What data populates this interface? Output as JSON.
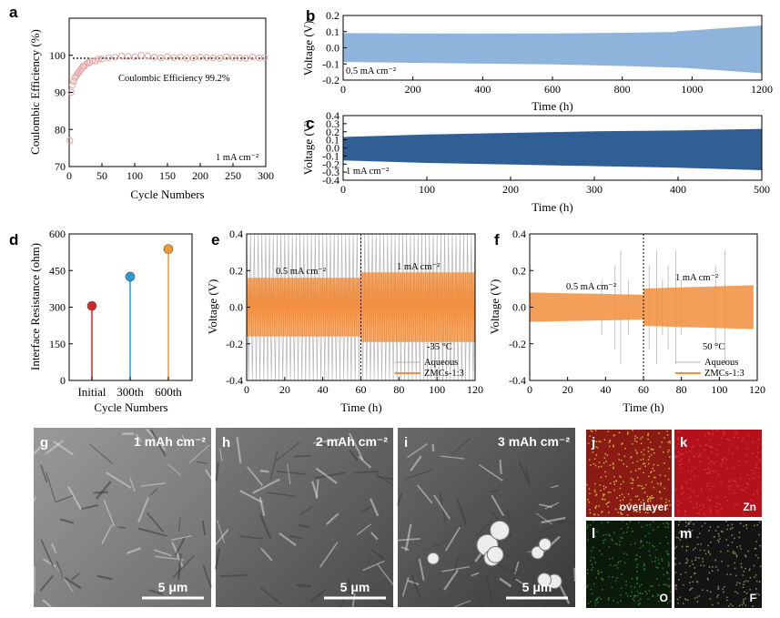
{
  "panels": {
    "a": {
      "label": "a",
      "ylabel": "Coulombic Efficiency (%)",
      "xlabel": "Cycle Numbers",
      "annotation": "Coulombic Efficiency 99.2%",
      "current": "1 mA cm⁻²"
    },
    "b": {
      "label": "b",
      "ylabel": "Voltage (V)",
      "xlabel": "Time (h)",
      "current": "0.5 mA cm⁻²"
    },
    "c": {
      "label": "c",
      "ylabel": "Voltage (V)",
      "xlabel": "Time (h)",
      "current": "1 mA cm⁻²"
    },
    "d": {
      "label": "d",
      "ylabel": "Interface Resistance (ohm)",
      "xlabel": "Cycle Numbers"
    },
    "e": {
      "label": "e",
      "ylabel": "Voltage (V)",
      "xlabel": "Time (h)",
      "current1": "0.5 mA cm⁻²",
      "current2": "1 mA cm⁻²",
      "temp": "-35 °C",
      "legend1": "Aqueous",
      "legend2": "ZMCs-1:3"
    },
    "f": {
      "label": "f",
      "ylabel": "Voltage (V)",
      "xlabel": "Time (h)",
      "current1": "0.5 mA cm⁻²",
      "current2": "1 mA cm⁻²",
      "temp": "50 °C",
      "legend1": "Aqueous",
      "legend2": "ZMCs-1:3"
    },
    "g": {
      "label": "g",
      "capacity": "1 mAh cm⁻²",
      "scale": "5 μm"
    },
    "h": {
      "label": "h",
      "capacity": "2 mAh cm⁻²",
      "scale": "5 μm"
    },
    "i": {
      "label": "i",
      "capacity": "3 mAh cm⁻²",
      "scale": "5 μm"
    },
    "j": {
      "label": "j",
      "element": "overlayer"
    },
    "k": {
      "label": "k",
      "element": "Zn"
    },
    "l": {
      "label": "l",
      "element": "O"
    },
    "m": {
      "label": "m",
      "element": "F"
    }
  },
  "colors": {
    "orange": "#f28e3c",
    "lightblue": "#8fb4dc",
    "darkblue": "#2f5f95",
    "red": "#d62728",
    "cyan": "#2e9ad3",
    "gold": "#f29a2e"
  },
  "chart_data": [
    {
      "type": "scatter",
      "panel": "a",
      "xlim": [
        0,
        300
      ],
      "ylim": [
        70,
        110
      ],
      "xticks": [
        "0",
        "50",
        "100",
        "150",
        "200",
        "250",
        "300"
      ],
      "yticks": [
        "70",
        "80",
        "90",
        "100"
      ],
      "reference_line": 99.2,
      "x": [
        1,
        3,
        5,
        7,
        9,
        11,
        13,
        15,
        17,
        19,
        21,
        23,
        25,
        28,
        31,
        35,
        40,
        45,
        50,
        60,
        70,
        80,
        90,
        100,
        110,
        120,
        130,
        140,
        150,
        160,
        170,
        180,
        190,
        200,
        210,
        220,
        230,
        240,
        250,
        260,
        270,
        280,
        290,
        298
      ],
      "values": [
        77,
        90,
        92,
        93,
        94,
        94.5,
        95,
        95.5,
        96,
        96.5,
        97,
        97,
        97.5,
        98,
        98,
        98.5,
        98.5,
        99,
        99,
        99.3,
        99.5,
        99.8,
        99.7,
        99.6,
        100,
        99.8,
        99.5,
        99.3,
        99.6,
        99.4,
        99.5,
        99.2,
        99.3,
        99.5,
        99.4,
        99.3,
        99.2,
        99.6,
        99.4,
        99.3,
        99.2,
        99.5,
        99.3,
        99.4
      ]
    },
    {
      "type": "area",
      "panel": "b",
      "xlim": [
        0,
        1200
      ],
      "ylim": [
        -0.2,
        0.2
      ],
      "xticks": [
        "0",
        "200",
        "400",
        "600",
        "800",
        "1000",
        "1200"
      ],
      "yticks": [
        "-0.2",
        "-0.1",
        "0.0",
        "0.1",
        "0.2"
      ],
      "time": [
        0,
        200,
        400,
        600,
        800,
        950,
        960,
        1000,
        1200
      ],
      "upper": [
        0.088,
        0.086,
        0.085,
        0.086,
        0.09,
        0.095,
        0.1,
        0.105,
        0.135
      ],
      "lower": [
        -0.085,
        -0.09,
        -0.095,
        -0.1,
        -0.11,
        -0.12,
        -0.12,
        -0.125,
        -0.155
      ]
    },
    {
      "type": "area",
      "panel": "c",
      "xlim": [
        0,
        500
      ],
      "ylim": [
        -0.4,
        0.4
      ],
      "xticks": [
        "0",
        "100",
        "200",
        "300",
        "400",
        "500"
      ],
      "yticks": [
        "-0.4",
        "-0.3",
        "-0.2",
        "-0.1",
        "0.0",
        "0.1",
        "0.2",
        "0.3",
        "0.4"
      ],
      "time": [
        0,
        100,
        200,
        300,
        400,
        500
      ],
      "upper": [
        0.13,
        0.16,
        0.18,
        0.2,
        0.21,
        0.23
      ],
      "lower": [
        -0.15,
        -0.18,
        -0.2,
        -0.22,
        -0.24,
        -0.27
      ]
    },
    {
      "type": "scatter",
      "panel": "d",
      "ylim": [
        0,
        600
      ],
      "categories": [
        "Initial",
        "300th",
        "600th"
      ],
      "yticks": [
        "0",
        "150",
        "300",
        "450",
        "600"
      ],
      "values": [
        305,
        425,
        538
      ]
    },
    {
      "type": "line",
      "panel": "e",
      "xlim": [
        0,
        120
      ],
      "ylim": [
        -0.4,
        0.4
      ],
      "xticks": [
        "0",
        "20",
        "40",
        "60",
        "80",
        "100",
        "120"
      ],
      "yticks": [
        "-0.4",
        "-0.2",
        "0.0",
        "0.2",
        "0.4"
      ],
      "divider": 60,
      "series": [
        {
          "name": "Aqueous",
          "period_h": 2,
          "amplitude": [
            0.4,
            0.4
          ]
        },
        {
          "name": "ZMCs-1:3",
          "period_h": 2,
          "amplitude": [
            0.16,
            0.19
          ]
        }
      ]
    },
    {
      "type": "line",
      "panel": "f",
      "xlim": [
        0,
        120
      ],
      "ylim": [
        -0.4,
        0.4
      ],
      "xticks": [
        "0",
        "20",
        "40",
        "60",
        "80",
        "100",
        "120"
      ],
      "yticks": [
        "-0.4",
        "-0.2",
        "0.0",
        "0.2",
        "0.4"
      ],
      "divider": 60,
      "series": [
        {
          "name": "Aqueous",
          "spikes_h": [
            38,
            45,
            48,
            52,
            63,
            67,
            70,
            73,
            77,
            80,
            98,
            103
          ]
        },
        {
          "name": "ZMCs-1:3",
          "amplitude": [
            0.08,
            0.12
          ]
        }
      ]
    }
  ]
}
